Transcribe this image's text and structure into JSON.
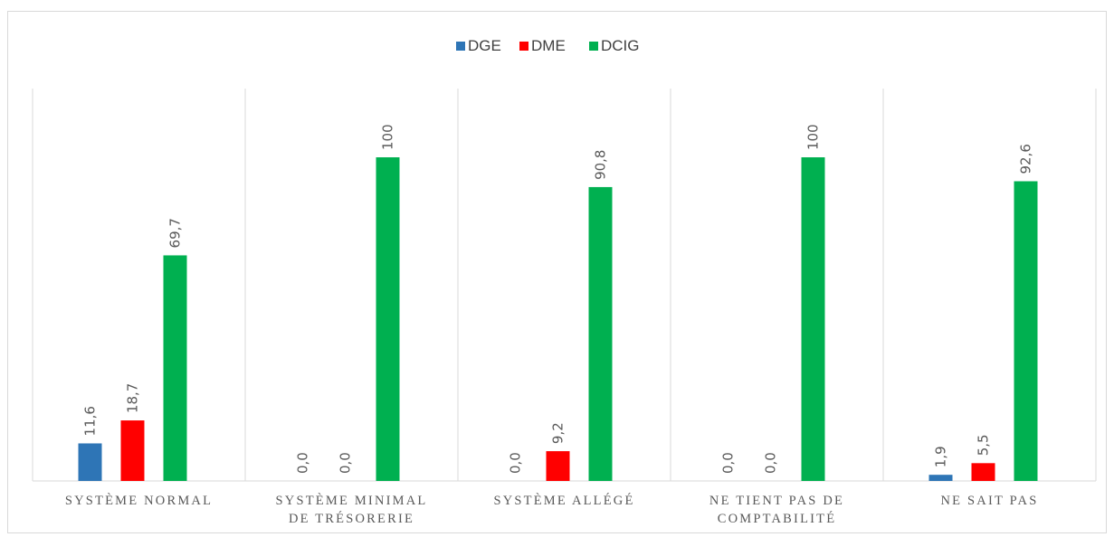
{
  "chart_data": {
    "type": "bar",
    "title": "",
    "xlabel": "",
    "ylabel": "",
    "ylim": [
      0,
      100
    ],
    "grid": "vertical separators between categories",
    "legend_position": "top",
    "categories": [
      [
        "SYSTÈME NORMAL"
      ],
      [
        "SYSTÈME MINIMAL",
        "DE TRÉSORERIE"
      ],
      [
        "SYSTÈME ALLÉGÉ"
      ],
      [
        "NE TIENT PAS DE",
        "COMPTABILITÉ"
      ],
      [
        "NE SAIT PAS"
      ]
    ],
    "series": [
      {
        "name": "DGE",
        "color": "#2e75b6",
        "values": [
          11.6,
          0.0,
          0.0,
          0.0,
          1.9
        ],
        "labels": [
          "11,6",
          "0,0",
          "0,0",
          "0,0",
          "1,9"
        ]
      },
      {
        "name": "DME",
        "color": "#ff0000",
        "values": [
          18.7,
          0.0,
          9.2,
          0.0,
          5.5
        ],
        "labels": [
          "18,7",
          "0,0",
          "9,2",
          "0,0",
          "5,5"
        ]
      },
      {
        "name": "DCIG",
        "color": "#00b050",
        "values": [
          69.7,
          100,
          90.8,
          100,
          92.6
        ],
        "labels": [
          "69,7",
          "100",
          "90,8",
          "100",
          "92,6"
        ]
      }
    ]
  }
}
